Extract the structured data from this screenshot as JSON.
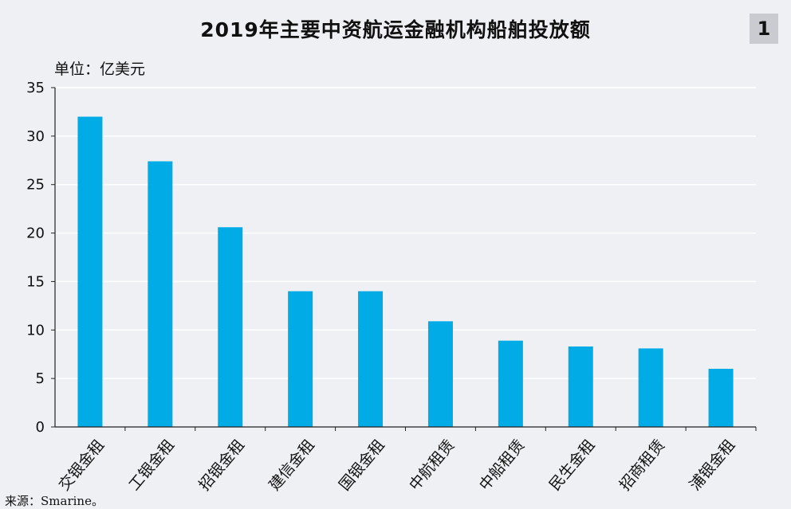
{
  "header": {
    "title": "2019年主要中资航运金融机构船舶投放额",
    "badge": "1",
    "unit_label": "单位：亿美元"
  },
  "footer": {
    "source": "来源：Smarine。"
  },
  "colors": {
    "bar": "#00abe6",
    "grid": "#ffffff",
    "axis": "#222222",
    "background": "#eff0f4"
  },
  "chart_data": {
    "type": "bar",
    "title": "2019年主要中资航运金融机构船舶投放额",
    "ylabel": "单位：亿美元",
    "xlabel": "",
    "categories": [
      "交银金租",
      "工银金租",
      "招银金租",
      "建信金租",
      "国银金租",
      "中航租赁",
      "中船租赁",
      "民生金租",
      "招商租赁",
      "浦银金租"
    ],
    "values": [
      32,
      27.4,
      20.6,
      14,
      14,
      10.9,
      8.9,
      8.3,
      8.1,
      6
    ],
    "ylim": [
      0,
      35
    ],
    "yticks": [
      "0",
      "5",
      "10",
      "15",
      "20",
      "25",
      "30",
      "35"
    ],
    "grid": true,
    "legend": "none"
  }
}
